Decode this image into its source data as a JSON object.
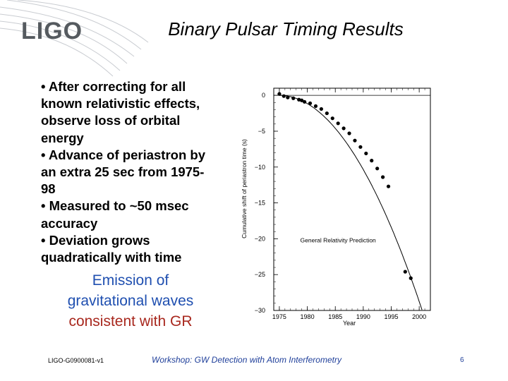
{
  "header": {
    "logo_text": "LIGO",
    "title": "Binary Pulsar Timing Results"
  },
  "bullets": [
    "• After correcting for all",
    "known relativistic effects,",
    "observe loss of orbital",
    "energy",
    "• Advance of periastron by",
    "an extra 25 sec from 1975-",
    "98",
    "• Measured to ~50 msec",
    "accuracy",
    "• Deviation grows",
    "quadratically with time"
  ],
  "emission": {
    "line1": "Emission of",
    "line2": "gravitational waves",
    "line3": "consistent with GR"
  },
  "chart_data": {
    "type": "scatter",
    "title": "",
    "xlabel": "Year",
    "ylabel": "Cumulative shift of periastron time (s)",
    "xlim": [
      1974,
      2002
    ],
    "ylim": [
      -30,
      1
    ],
    "xticks": [
      1975,
      1980,
      1985,
      1990,
      1995,
      2000
    ],
    "yticks": [
      0,
      -5,
      -10,
      -15,
      -20,
      -25,
      -30
    ],
    "curve_label": "General Relativity Prediction",
    "points": {
      "x": [
        1975.0,
        1975.8,
        1976.5,
        1977.5,
        1978.5,
        1979.0,
        1979.5,
        1980.5,
        1981.5,
        1982.5,
        1983.5,
        1984.5,
        1985.5,
        1986.5,
        1987.5,
        1988.5,
        1989.5,
        1990.5,
        1991.5,
        1992.5,
        1993.5,
        1994.5,
        1997.5,
        1998.5
      ],
      "y": [
        0.2,
        -0.1,
        -0.3,
        -0.4,
        -0.6,
        -0.7,
        -0.9,
        -1.1,
        -1.5,
        -1.9,
        -2.5,
        -3.2,
        -3.9,
        -4.6,
        -5.3,
        -6.3,
        -7.2,
        -8.1,
        -9.1,
        -10.2,
        -11.4,
        -12.7,
        -24.6,
        -25.5
      ]
    }
  },
  "footer": {
    "doc_id": "LIGO-G0900081-v1",
    "workshop": "Workshop: GW Detection with Atom Interferometry",
    "page_number": "6"
  }
}
